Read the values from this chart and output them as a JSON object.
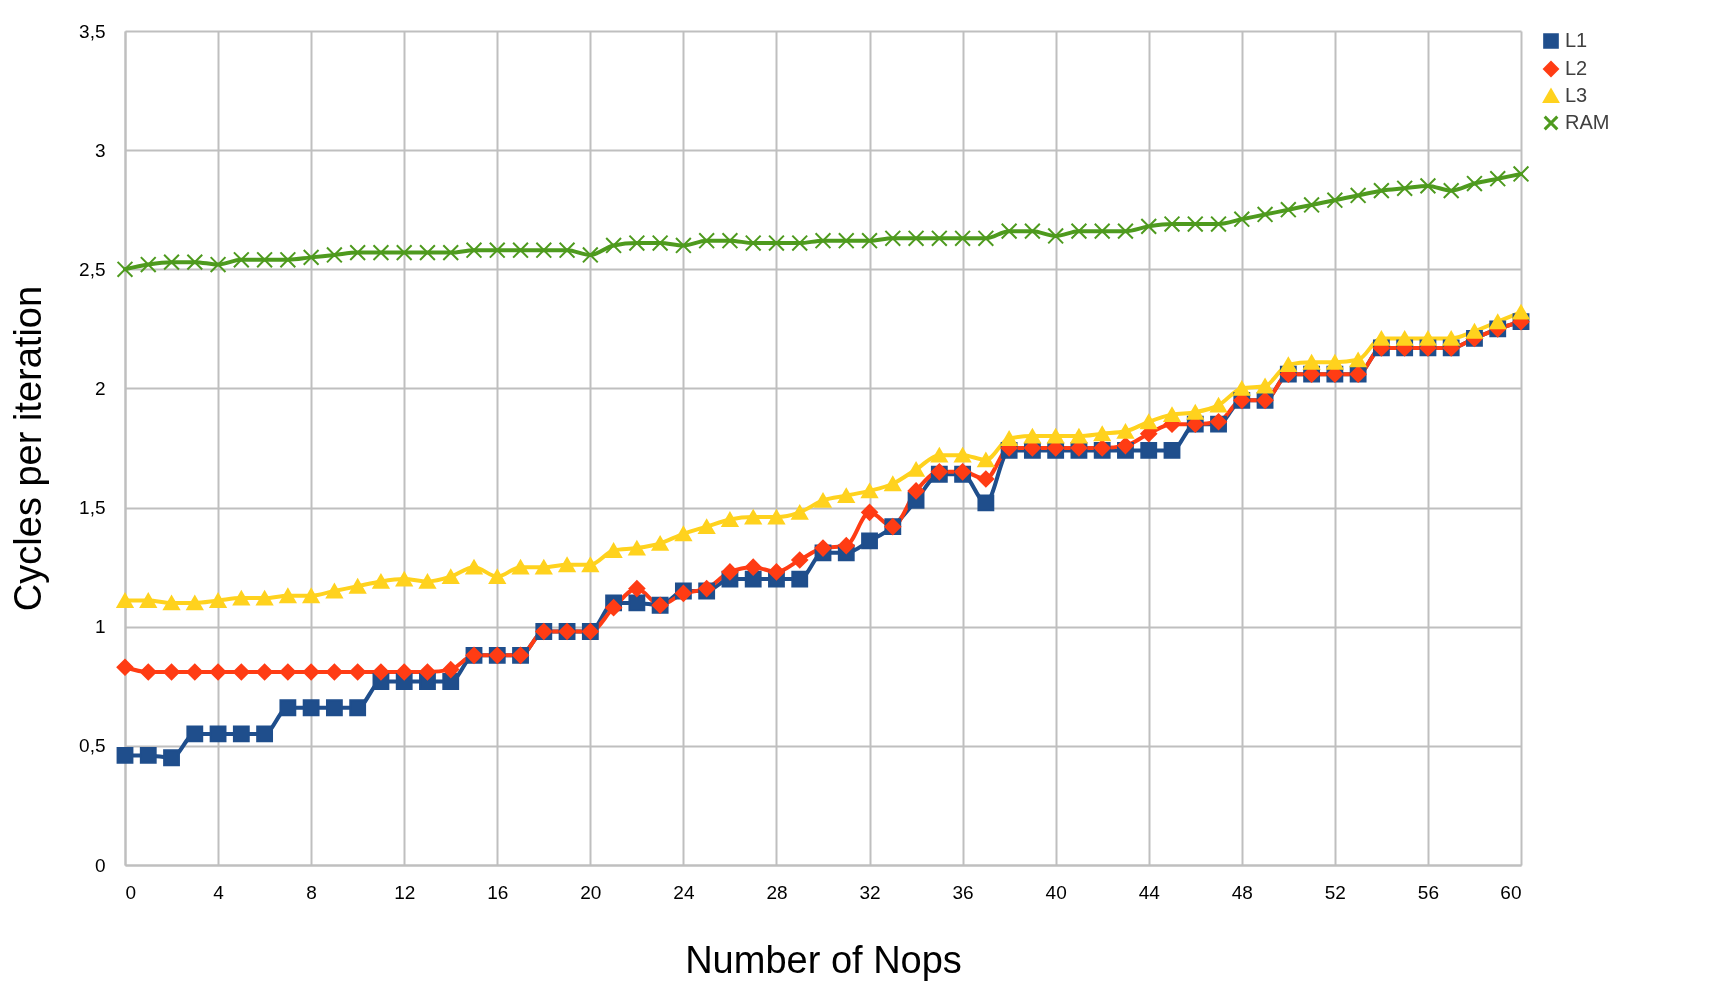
{
  "chart_data": {
    "type": "line",
    "xlabel": "Number of Nops",
    "ylabel": "Cycles per iteration",
    "x": [
      0,
      1,
      2,
      3,
      4,
      5,
      6,
      7,
      8,
      9,
      10,
      11,
      12,
      13,
      14,
      15,
      16,
      17,
      18,
      19,
      20,
      21,
      22,
      23,
      24,
      25,
      26,
      27,
      28,
      29,
      30,
      31,
      32,
      33,
      34,
      35,
      36,
      37,
      38,
      39,
      40,
      41,
      42,
      43,
      44,
      45,
      46,
      47,
      48,
      49,
      50,
      51,
      52,
      53,
      54,
      55,
      56,
      57,
      58,
      59,
      60
    ],
    "series": [
      {
        "name": "L1",
        "color": "#1f4e8c",
        "marker": "square",
        "values": [
          0.46,
          0.46,
          0.45,
          0.55,
          0.55,
          0.55,
          0.55,
          0.66,
          0.66,
          0.66,
          0.66,
          0.77,
          0.77,
          0.77,
          0.77,
          0.88,
          0.88,
          0.88,
          0.98,
          0.98,
          0.98,
          1.1,
          1.1,
          1.09,
          1.15,
          1.15,
          1.2,
          1.2,
          1.2,
          1.2,
          1.31,
          1.31,
          1.36,
          1.42,
          1.53,
          1.64,
          1.64,
          1.52,
          1.74,
          1.74,
          1.74,
          1.74,
          1.74,
          1.74,
          1.74,
          1.74,
          1.85,
          1.85,
          1.95,
          1.95,
          2.06,
          2.06,
          2.06,
          2.06,
          2.17,
          2.17,
          2.17,
          2.17,
          2.21,
          2.25,
          2.28
        ]
      },
      {
        "name": "L2",
        "color": "#ff3c14",
        "marker": "diamond",
        "values": [
          0.83,
          0.81,
          0.81,
          0.81,
          0.81,
          0.81,
          0.81,
          0.81,
          0.81,
          0.81,
          0.81,
          0.81,
          0.81,
          0.81,
          0.82,
          0.88,
          0.88,
          0.88,
          0.98,
          0.98,
          0.98,
          1.08,
          1.16,
          1.09,
          1.14,
          1.16,
          1.23,
          1.25,
          1.23,
          1.28,
          1.33,
          1.34,
          1.48,
          1.42,
          1.57,
          1.65,
          1.65,
          1.62,
          1.75,
          1.75,
          1.75,
          1.75,
          1.75,
          1.76,
          1.81,
          1.85,
          1.85,
          1.86,
          1.95,
          1.95,
          2.06,
          2.06,
          2.06,
          2.06,
          2.17,
          2.17,
          2.17,
          2.17,
          2.21,
          2.25,
          2.28
        ]
      },
      {
        "name": "L3",
        "color": "#ffd21e",
        "marker": "triangle",
        "values": [
          1.11,
          1.11,
          1.1,
          1.1,
          1.11,
          1.12,
          1.12,
          1.13,
          1.13,
          1.15,
          1.17,
          1.19,
          1.2,
          1.19,
          1.21,
          1.25,
          1.21,
          1.25,
          1.25,
          1.26,
          1.26,
          1.32,
          1.33,
          1.35,
          1.39,
          1.42,
          1.45,
          1.46,
          1.46,
          1.48,
          1.53,
          1.55,
          1.57,
          1.6,
          1.66,
          1.72,
          1.72,
          1.7,
          1.79,
          1.8,
          1.8,
          1.8,
          1.81,
          1.82,
          1.86,
          1.89,
          1.9,
          1.93,
          2.0,
          2.01,
          2.1,
          2.11,
          2.11,
          2.12,
          2.21,
          2.21,
          2.21,
          2.21,
          2.24,
          2.28,
          2.32
        ]
      },
      {
        "name": "RAM",
        "color": "#4e9a1e",
        "marker": "cross",
        "values": [
          2.5,
          2.52,
          2.53,
          2.53,
          2.52,
          2.54,
          2.54,
          2.54,
          2.55,
          2.56,
          2.57,
          2.57,
          2.57,
          2.57,
          2.57,
          2.58,
          2.58,
          2.58,
          2.58,
          2.58,
          2.56,
          2.6,
          2.61,
          2.61,
          2.6,
          2.62,
          2.62,
          2.61,
          2.61,
          2.61,
          2.62,
          2.62,
          2.62,
          2.63,
          2.63,
          2.63,
          2.63,
          2.63,
          2.66,
          2.66,
          2.64,
          2.66,
          2.66,
          2.66,
          2.68,
          2.69,
          2.69,
          2.69,
          2.71,
          2.73,
          2.75,
          2.77,
          2.79,
          2.81,
          2.83,
          2.84,
          2.85,
          2.83,
          2.86,
          2.88,
          2.9
        ]
      }
    ],
    "xlim": [
      0,
      60
    ],
    "xticks": [
      0,
      4,
      8,
      12,
      16,
      20,
      24,
      28,
      32,
      36,
      40,
      44,
      48,
      52,
      56,
      60
    ],
    "ylim": [
      0,
      3.5
    ],
    "yticks": [
      0,
      {
        "value": 0.5,
        "label": "0,5"
      },
      1,
      {
        "value": 1.5,
        "label": "1,5"
      },
      2,
      {
        "value": 2.5,
        "label": "2,5"
      },
      3,
      {
        "value": 3.5,
        "label": "3,5"
      }
    ],
    "grid": true,
    "legend": "right",
    "line_style": "solid"
  }
}
